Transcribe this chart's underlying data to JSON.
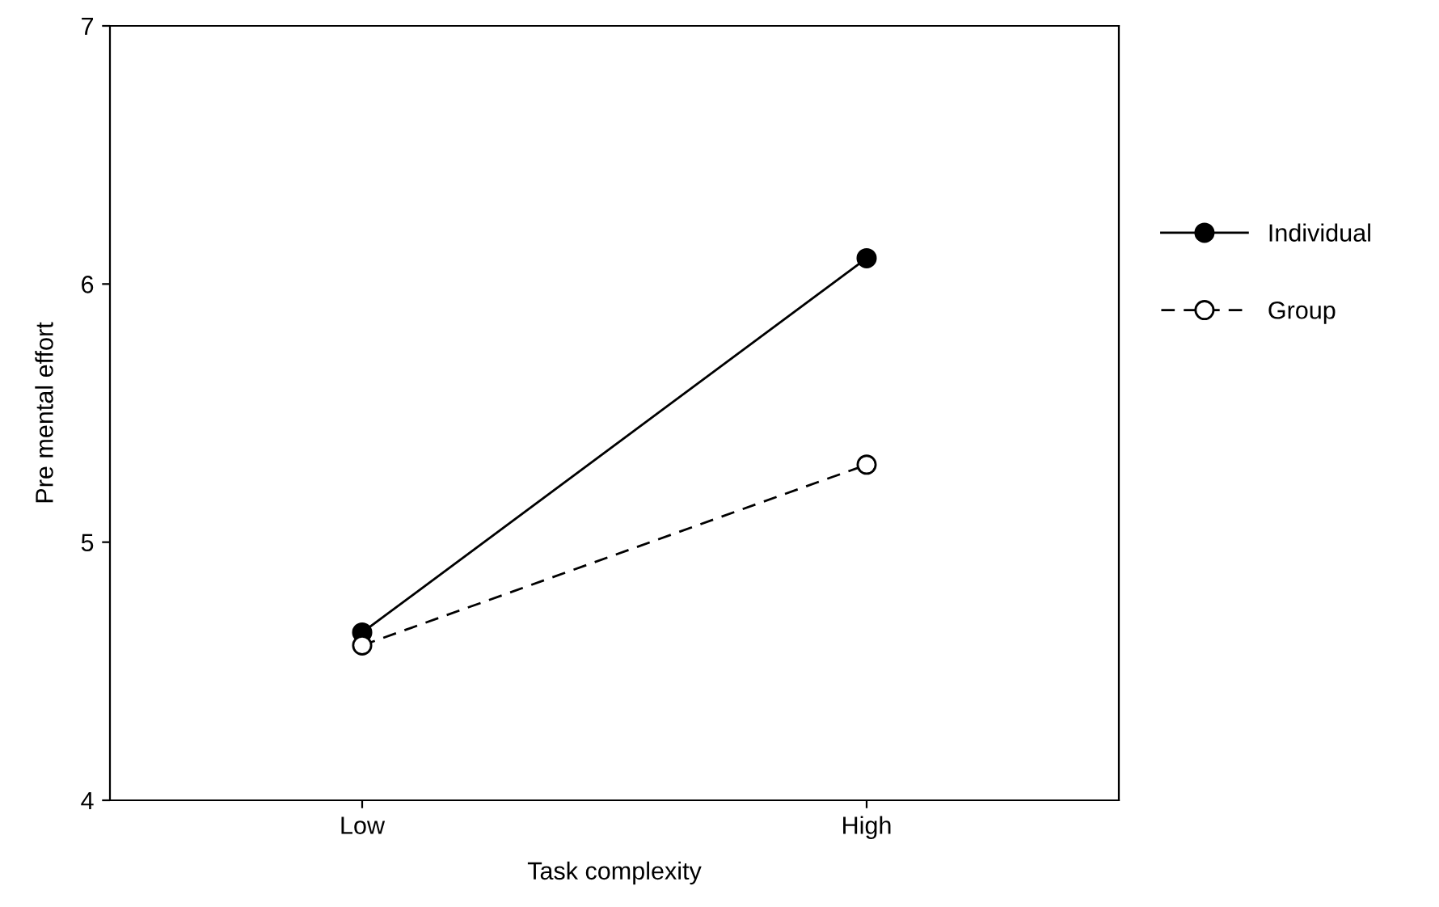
{
  "chart_data": {
    "type": "line",
    "xlabel": "Task complexity",
    "ylabel": "Pre mental effort",
    "categories": [
      "Low",
      "High"
    ],
    "series": [
      {
        "name": "Individual",
        "color": "#000000",
        "values": [
          4.65,
          6.1
        ],
        "marker": "circle",
        "line_style": "solid"
      },
      {
        "name": "Group",
        "color": "#000000",
        "values": [
          4.6,
          5.3
        ],
        "marker": "circle",
        "line_style": "dashed"
      }
    ],
    "ylim": [
      4,
      7
    ],
    "yticks": [
      4,
      5,
      6,
      7
    ],
    "grid": false,
    "legend": "right"
  }
}
